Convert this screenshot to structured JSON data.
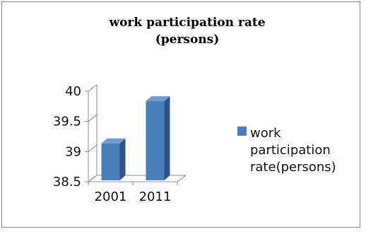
{
  "chart_data": {
    "type": "bar",
    "title": "work participation rate (persons)",
    "title_lines": [
      "work participation rate",
      "(persons)"
    ],
    "categories": [
      "2001",
      "2011"
    ],
    "series": [
      {
        "name": "work participation rate(persons)",
        "values": [
          39.1,
          39.8
        ]
      }
    ],
    "legend_lines": [
      "work",
      "participation",
      "rate(persons)"
    ],
    "ylim": [
      38.5,
      40
    ],
    "yticks": [
      "38.5",
      "39",
      "39.5",
      "40"
    ],
    "xlabel": "",
    "ylabel": "",
    "grid": false,
    "legend_position": "right",
    "style": "3d-bar",
    "colors": {
      "bar": "#4a7ebb",
      "bar_side": "#2c5688",
      "bar_top": "#6f9ad2",
      "axis": "#8c8c8c"
    }
  }
}
